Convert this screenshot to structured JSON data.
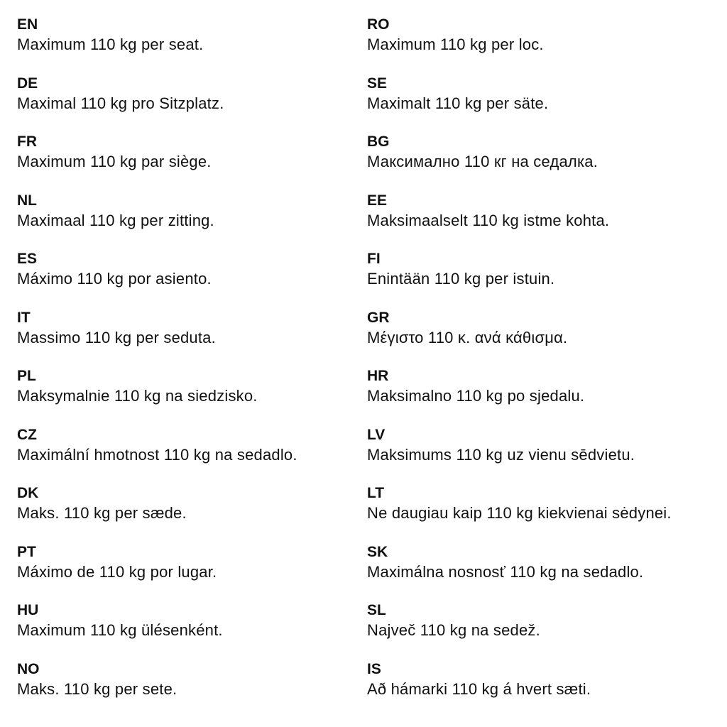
{
  "left": [
    {
      "code": "EN",
      "text": "Maximum 110 kg per seat."
    },
    {
      "code": "DE",
      "text": "Maximal 110 kg pro Sitzplatz."
    },
    {
      "code": "FR",
      "text": "Maximum 110 kg par siège."
    },
    {
      "code": "NL",
      "text": "Maximaal 110 kg per zitting."
    },
    {
      "code": "ES",
      "text": "Máximo 110 kg por asiento."
    },
    {
      "code": "IT",
      "text": "Massimo 110 kg per seduta."
    },
    {
      "code": "PL",
      "text": "Maksymalnie 110 kg na siedzisko."
    },
    {
      "code": "CZ",
      "text": "Maximální hmotnost 110 kg na sedadlo."
    },
    {
      "code": "DK",
      "text": "Maks. 110 kg per sæde."
    },
    {
      "code": "PT",
      "text": "Máximo de 110 kg por lugar."
    },
    {
      "code": "HU",
      "text": "Maximum 110 kg ülésenként."
    },
    {
      "code": "NO",
      "text": "Maks. 110 kg per sete."
    }
  ],
  "right": [
    {
      "code": "RO",
      "text": "Maximum 110 kg per loc."
    },
    {
      "code": "SE",
      "text": "Maximalt 110 kg per säte."
    },
    {
      "code": "BG",
      "text": "Максимално 110 кг на седалка."
    },
    {
      "code": "EE",
      "text": "Maksimaalselt 110 kg istme kohta."
    },
    {
      "code": "FI",
      "text": "Enintään 110 kg per istuin."
    },
    {
      "code": "GR",
      "text": "Μέγιστο 110 κ. ανά κάθισμα."
    },
    {
      "code": "HR",
      "text": "Maksimalno 110 kg po sjedalu."
    },
    {
      "code": "LV",
      "text": "Maksimums 110 kg uz vienu sēdvietu."
    },
    {
      "code": "LT",
      "text": "Ne daugiau kaip 110 kg kiekvienai sėdynei."
    },
    {
      "code": "SK",
      "text": "Maximálna nosnosť 110 kg na sedadlo."
    },
    {
      "code": "SL",
      "text": "Največ 110 kg na sedež."
    },
    {
      "code": "IS",
      "text": "Að hámarki 110 kg á hvert sæti."
    }
  ]
}
